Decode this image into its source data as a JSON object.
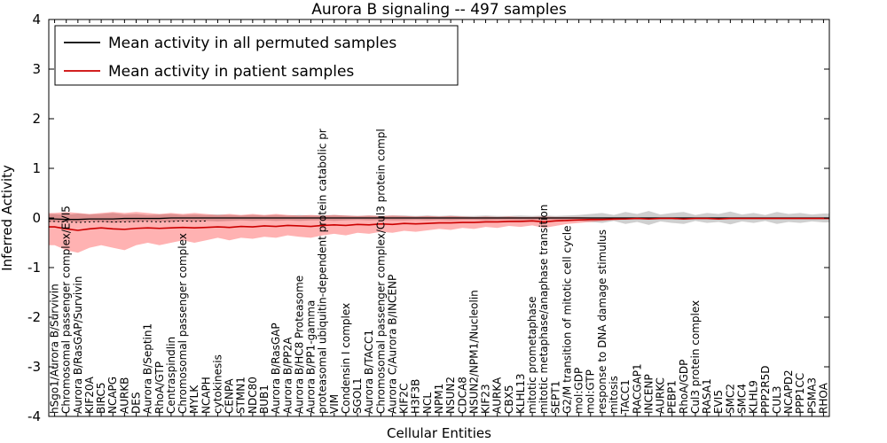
{
  "chart_data": {
    "type": "line",
    "title": "Aurora B signaling -- 497 samples",
    "xlabel": "Cellular Entities",
    "ylabel": "Inferred Activity",
    "ylim": [
      -4,
      4
    ],
    "yticks": [
      4,
      3,
      2,
      1,
      0,
      -1,
      -2,
      -3,
      -4
    ],
    "grid": false,
    "legend_position": "upper left",
    "categories": [
      "hSgo1/Aurora B/Survivin",
      "Chromosomal passenger complex/EVI5",
      "Aurora B/RasGAP/Survivin",
      "KIF20A",
      "BIRC5",
      "NCAPG",
      "AURKB",
      "DES",
      "Aurora B/Septin1",
      "RhoA/GTP",
      "Centraspindlin",
      "Chromosomal passenger complex",
      "MYLK",
      "NCAPH",
      "cytokinesis",
      "CENPA",
      "STMN1",
      "NDC80",
      "BUB1",
      "Aurora B/RasGAP",
      "Aurora B/PP2A",
      "Aurora B/HC8 Proteasome",
      "Aurora B/PP1-gamma",
      "proteasomal ubiquitin-dependent protein catabolic pr",
      "VIM",
      "Condensin I complex",
      "SGOL1",
      "Aurora B/TACC1",
      "Chromosomal passenger complex/Cul3 protein compl",
      "Aurora C/Aurora B/INCENP",
      "KIF2C",
      "H3F3B",
      "NCL",
      "NPM1",
      "NSUN2",
      "CDCA8",
      "NSUN2/NPM1/Nucleolin",
      "KIF23",
      "AURKA",
      "CBX5",
      "KLHL13",
      "mitotic prometaphase",
      "mitotic metaphase/anaphase transition",
      "SEPT1",
      "G2/M transition of mitotic cell cycle",
      "mol:GDP",
      "mol:GTP",
      "response to DNA damage stimulus",
      "mitosis",
      "TACC1",
      "RACGAP1",
      "INCENP",
      "AURKC",
      "PEBP1",
      "RhoA/GDP",
      "Cul3 protein complex",
      "RASA1",
      "EVI5",
      "SMC2",
      "SMC4",
      "KLHL9",
      "PPP2R5D",
      "CUL3",
      "NCAPD2",
      "PPP1CC",
      "PSMA3",
      "RHOA"
    ],
    "series": [
      {
        "id": "permuted-mean-line",
        "name": "Mean activity in all permuted samples",
        "color": "#000000",
        "width": 1.3,
        "style": "solid",
        "values": [
          -0.02,
          -0.03,
          -0.03,
          -0.02,
          -0.02,
          -0.02,
          -0.01,
          -0.01,
          -0.01,
          -0.01,
          0,
          0,
          0,
          0,
          0,
          0,
          0,
          0,
          0,
          0,
          0,
          0,
          0,
          0,
          0,
          0,
          0,
          0,
          0,
          0,
          0,
          0,
          0,
          0,
          0,
          0,
          0,
          0,
          0,
          0,
          0,
          0,
          0,
          0,
          0,
          0,
          0,
          0,
          0,
          0,
          0,
          0,
          0,
          0,
          0,
          0,
          0,
          0,
          0,
          0,
          0,
          0,
          0,
          0,
          0,
          0,
          0
        ]
      },
      {
        "id": "patient-mean-line",
        "name": "Mean activity in patient samples",
        "color": "#cc0000",
        "width": 1.6,
        "style": "solid",
        "values": [
          -0.18,
          -0.22,
          -0.25,
          -0.22,
          -0.2,
          -0.22,
          -0.23,
          -0.21,
          -0.2,
          -0.21,
          -0.2,
          -0.19,
          -0.2,
          -0.19,
          -0.18,
          -0.19,
          -0.17,
          -0.18,
          -0.16,
          -0.17,
          -0.15,
          -0.16,
          -0.17,
          -0.15,
          -0.14,
          -0.15,
          -0.13,
          -0.14,
          -0.12,
          -0.13,
          -0.11,
          -0.12,
          -0.11,
          -0.1,
          -0.1,
          -0.09,
          -0.09,
          -0.08,
          -0.08,
          -0.07,
          -0.07,
          -0.06,
          -0.08,
          -0.06,
          -0.05,
          -0.04,
          -0.03,
          -0.03,
          -0.02,
          -0.02,
          -0.01,
          -0.02,
          -0.01,
          -0.01,
          -0.02,
          -0.01,
          -0.01,
          -0.02,
          -0.01,
          -0.01,
          -0.01,
          -0.01,
          -0.01,
          -0.01,
          -0.01,
          -0.01,
          -0.01
        ]
      },
      {
        "id": "permuted-dotted-line",
        "color": "#000000",
        "width": 1,
        "style": "dotted",
        "values": [
          -0.07,
          -0.08,
          -0.09,
          -0.08,
          -0.07,
          -0.08,
          -0.08,
          -0.07,
          -0.07,
          -0.08,
          -0.07,
          -0.06,
          -0.07,
          -0.06,
          null,
          null,
          null,
          null,
          null,
          null,
          null,
          null,
          null,
          null,
          null,
          null,
          null,
          null,
          null,
          null,
          null,
          null,
          null,
          null,
          null,
          null,
          null,
          null,
          null,
          null,
          null,
          null,
          null,
          null,
          null,
          null,
          null,
          null,
          null,
          null,
          null,
          null,
          null,
          null,
          null,
          null,
          null,
          null,
          null,
          null,
          null,
          null,
          null,
          null,
          null,
          null,
          null
        ]
      }
    ],
    "bands": [
      {
        "name": "permuted-activity-band",
        "fill": "#808080",
        "opacity": 0.38,
        "upper": [
          0.08,
          0.06,
          0.09,
          0.07,
          0.08,
          0.1,
          0.07,
          0.08,
          0.06,
          0.07,
          0.08,
          0.06,
          0.07,
          0.06,
          0.07,
          0.06,
          0.05,
          0.06,
          0.05,
          0.06,
          0.05,
          0.06,
          0.05,
          0.05,
          0.06,
          0.05,
          0.04,
          0.05,
          0.04,
          0.05,
          0.05,
          0.04,
          0.05,
          0.04,
          0.05,
          0.04,
          0.04,
          0.05,
          0.04,
          0.04,
          0.05,
          0.04,
          0.05,
          0.04,
          0.05,
          0.06,
          0.08,
          0.1,
          0.06,
          0.12,
          0.08,
          0.14,
          0.07,
          0.1,
          0.12,
          0.06,
          0.1,
          0.08,
          0.13,
          0.07,
          0.1,
          0.06,
          0.12,
          0.08,
          0.1,
          0.07,
          0.09
        ],
        "lower": [
          -0.08,
          -0.07,
          -0.09,
          -0.07,
          -0.08,
          -0.1,
          -0.08,
          -0.08,
          -0.06,
          -0.07,
          -0.08,
          -0.06,
          -0.07,
          -0.06,
          -0.07,
          -0.06,
          -0.05,
          -0.06,
          -0.05,
          -0.06,
          -0.05,
          -0.06,
          -0.05,
          -0.05,
          -0.06,
          -0.05,
          -0.04,
          -0.05,
          -0.04,
          -0.05,
          -0.05,
          -0.04,
          -0.05,
          -0.04,
          -0.05,
          -0.04,
          -0.04,
          -0.05,
          -0.04,
          -0.04,
          -0.05,
          -0.04,
          -0.05,
          -0.04,
          -0.05,
          -0.06,
          -0.08,
          -0.1,
          -0.06,
          -0.12,
          -0.08,
          -0.14,
          -0.07,
          -0.1,
          -0.12,
          -0.06,
          -0.1,
          -0.08,
          -0.13,
          -0.07,
          -0.1,
          -0.06,
          -0.12,
          -0.08,
          -0.1,
          -0.07,
          -0.09
        ]
      },
      {
        "name": "patient-activity-band",
        "fill": "#ff0000",
        "opacity": 0.3,
        "upper": [
          0.1,
          0.12,
          0.1,
          0.08,
          0.1,
          0.12,
          0.1,
          0.12,
          0.1,
          0.08,
          0.1,
          0.08,
          0.1,
          0.08,
          0.06,
          0.08,
          0.06,
          0.08,
          0.06,
          0.08,
          0.06,
          0.05,
          0.06,
          0.05,
          0.06,
          0.05,
          0.04,
          0.05,
          0.04,
          0.05,
          0.04,
          0.03,
          0.04,
          0.03,
          0.04,
          0.03,
          0.02,
          0.03,
          0.02,
          0.03,
          0.02,
          0.02,
          0.03,
          0.02,
          0.02,
          0.02,
          0.01,
          0.01,
          0.01,
          0.0,
          null,
          null,
          null,
          null,
          null,
          null,
          null,
          null,
          null,
          null,
          null,
          null,
          null,
          null,
          null,
          null,
          null
        ],
        "lower": [
          -0.55,
          -0.65,
          -0.7,
          -0.6,
          -0.55,
          -0.6,
          -0.65,
          -0.55,
          -0.5,
          -0.55,
          -0.5,
          -0.45,
          -0.5,
          -0.45,
          -0.4,
          -0.45,
          -0.4,
          -0.42,
          -0.38,
          -0.4,
          -0.35,
          -0.38,
          -0.4,
          -0.35,
          -0.32,
          -0.35,
          -0.3,
          -0.32,
          -0.28,
          -0.3,
          -0.26,
          -0.28,
          -0.25,
          -0.22,
          -0.24,
          -0.2,
          -0.22,
          -0.18,
          -0.2,
          -0.16,
          -0.18,
          -0.15,
          -0.2,
          -0.16,
          -0.12,
          -0.1,
          -0.08,
          -0.06,
          -0.05,
          -0.03,
          null,
          null,
          null,
          null,
          null,
          null,
          null,
          null,
          null,
          null,
          null,
          null,
          null,
          null,
          null,
          null,
          null
        ]
      }
    ]
  }
}
